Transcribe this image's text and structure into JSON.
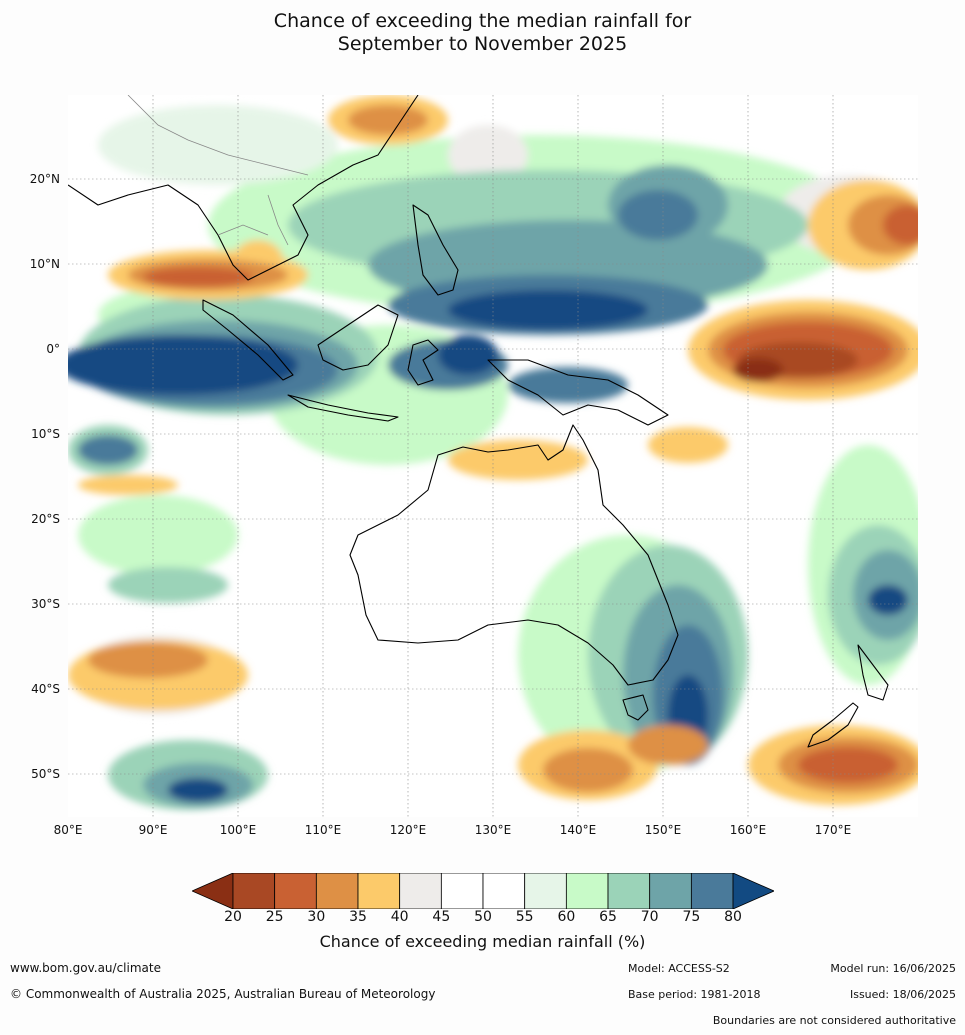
{
  "title": {
    "line1": "Chance of exceeding the median rainfall for",
    "line2": "September to November 2025"
  },
  "map": {
    "lat_labels": [
      "20°N",
      "10°N",
      "0°",
      "10°S",
      "20°S",
      "30°S",
      "40°S",
      "50°S"
    ],
    "lon_labels": [
      "80°E",
      "90°E",
      "100°E",
      "110°E",
      "120°E",
      "130°E",
      "140°E",
      "150°E",
      "160°E",
      "170°E"
    ]
  },
  "colorbar": {
    "ticks": [
      "20",
      "25",
      "30",
      "35",
      "40",
      "45",
      "50",
      "55",
      "60",
      "65",
      "70",
      "75",
      "80"
    ],
    "colors": [
      "#8a2f14",
      "#a94824",
      "#c96133",
      "#de9045",
      "#fcca6a",
      "#eeecea",
      "#ffffff",
      "#ffffff",
      "#e6f5e8",
      "#c8fac8",
      "#9bd3b8",
      "#6ea4a8",
      "#4a7a9a",
      "#124a82"
    ],
    "label": "Chance of exceeding median rainfall (%)"
  },
  "footer": {
    "url": "www.bom.gov.au/climate",
    "copyright": "© Commonwealth of Australia 2025, Australian Bureau of Meteorology",
    "model": "Model: ACCESS-S2",
    "model_run": "Model run: 16/06/2025",
    "base_period": "Base period: 1981-2018",
    "issued": "Issued: 18/06/2025",
    "disclaimer": "Boundaries are not considered authoritative"
  }
}
